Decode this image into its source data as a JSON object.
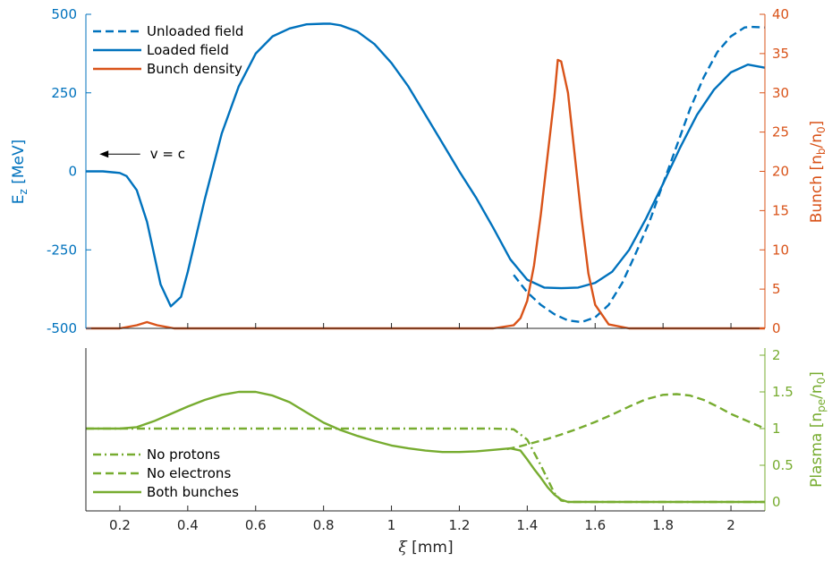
{
  "colors": {
    "field": "#0072BD",
    "bunch": "#D95319",
    "plasma": "#77AC30",
    "axis": "#262626"
  },
  "chart_data": [
    {
      "type": "line",
      "xlim": [
        0.1,
        2.1
      ],
      "ylim_left": [
        -500,
        500
      ],
      "ylim_right": [
        0,
        40
      ],
      "ylabel_left": {
        "main": "E",
        "sub": "z",
        "rest": " [MeV]"
      },
      "ylabel_right": {
        "main": "Bunch [n",
        "sub1": "b",
        "mid": "/n",
        "sub2": "0",
        "end": "]"
      },
      "left_ticks": [
        "500",
        "250",
        "0",
        "-250",
        "-500"
      ],
      "left_tick_values": [
        500,
        250,
        0,
        -250,
        -500
      ],
      "right_ticks": [
        "40",
        "35",
        "30",
        "25",
        "20",
        "15",
        "10",
        "5",
        "0"
      ],
      "right_tick_values": [
        40,
        35,
        30,
        25,
        20,
        15,
        10,
        5,
        0
      ],
      "annotation": {
        "text": "v = c",
        "arrow_from": [
          0.26,
          55
        ],
        "arrow_to": [
          0.14,
          55
        ]
      },
      "legend_position": "top-left",
      "series": [
        {
          "name": "Unloaded field",
          "axis": "left",
          "style": "dashed",
          "x": [
            1.36,
            1.4,
            1.44,
            1.48,
            1.52,
            1.56,
            1.6,
            1.64,
            1.68,
            1.72,
            1.76,
            1.8,
            1.84,
            1.88,
            1.92,
            1.96,
            2.0,
            2.04,
            2.06,
            2.1
          ],
          "y": [
            -330,
            -385,
            -425,
            -455,
            -475,
            -480,
            -465,
            -425,
            -355,
            -260,
            -160,
            -40,
            80,
            200,
            300,
            380,
            430,
            458,
            460,
            458
          ]
        },
        {
          "name": "Loaded field",
          "axis": "left",
          "style": "solid",
          "x": [
            0.1,
            0.15,
            0.2,
            0.22,
            0.25,
            0.28,
            0.3,
            0.32,
            0.35,
            0.38,
            0.4,
            0.45,
            0.5,
            0.55,
            0.6,
            0.65,
            0.7,
            0.75,
            0.8,
            0.82,
            0.85,
            0.9,
            0.95,
            1.0,
            1.05,
            1.1,
            1.15,
            1.2,
            1.25,
            1.3,
            1.35,
            1.4,
            1.45,
            1.5,
            1.55,
            1.6,
            1.65,
            1.7,
            1.75,
            1.8,
            1.85,
            1.9,
            1.95,
            2.0,
            2.05,
            2.1
          ],
          "y": [
            0,
            0,
            -5,
            -15,
            -60,
            -160,
            -260,
            -360,
            -430,
            -400,
            -320,
            -90,
            120,
            270,
            375,
            430,
            455,
            468,
            470,
            470,
            465,
            445,
            405,
            345,
            270,
            180,
            90,
            0,
            -85,
            -180,
            -280,
            -345,
            -370,
            -372,
            -370,
            -355,
            -320,
            -250,
            -150,
            -40,
            75,
            180,
            260,
            315,
            340,
            330
          ]
        },
        {
          "name": "Bunch density",
          "axis": "right",
          "style": "solid",
          "x": [
            0.1,
            0.2,
            0.25,
            0.28,
            0.31,
            0.36,
            0.4,
            1.1,
            1.3,
            1.36,
            1.38,
            1.4,
            1.42,
            1.44,
            1.46,
            1.48,
            1.49,
            1.5,
            1.52,
            1.54,
            1.56,
            1.58,
            1.6,
            1.64,
            1.7,
            2.1
          ],
          "y": [
            0,
            0,
            0.4,
            0.8,
            0.4,
            0,
            0,
            0,
            0,
            0.4,
            1.3,
            3.5,
            8,
            14.5,
            22,
            29.5,
            34.2,
            34,
            30,
            22,
            14,
            7,
            3,
            0.5,
            0,
            0
          ]
        }
      ]
    },
    {
      "type": "line",
      "xlim": [
        0.1,
        2.1
      ],
      "ylim_right": [
        0,
        2
      ],
      "xlabel": {
        "sym": "ξ",
        "rest": " [mm]"
      },
      "ylabel_right": {
        "main": "Plasma [n",
        "sub1": "pe",
        "mid": "/n",
        "sub2": "0",
        "end": "]"
      },
      "x_ticks": [
        "0.2",
        "0.4",
        "0.6",
        "0.8",
        "1",
        "1.2",
        "1.4",
        "1.6",
        "1.8",
        "2"
      ],
      "x_tick_values": [
        0.2,
        0.4,
        0.6,
        0.8,
        1.0,
        1.2,
        1.4,
        1.6,
        1.8,
        2.0
      ],
      "right_ticks": [
        "2",
        "1.5",
        "1",
        "0.5",
        "0"
      ],
      "right_tick_values": [
        2,
        1.5,
        1,
        0.5,
        0
      ],
      "legend_position": "bottom-left",
      "series": [
        {
          "name": "No protons",
          "style": "dashdot",
          "x": [
            0.1,
            0.5,
            1.0,
            1.3,
            1.36,
            1.4,
            1.44,
            1.48,
            1.5,
            1.52,
            1.56,
            1.6,
            2.1
          ],
          "y": [
            1.0,
            1.0,
            1.0,
            1.0,
            0.99,
            0.85,
            0.5,
            0.12,
            0.02,
            0.0,
            0.0,
            0.0,
            0.0
          ]
        },
        {
          "name": "No electrons",
          "style": "dashed",
          "x": [
            1.34,
            1.38,
            1.42,
            1.46,
            1.5,
            1.55,
            1.6,
            1.65,
            1.7,
            1.75,
            1.8,
            1.84,
            1.88,
            1.92,
            1.96,
            2.0,
            2.05,
            2.1
          ],
          "y": [
            0.72,
            0.76,
            0.81,
            0.86,
            0.92,
            1.0,
            1.09,
            1.19,
            1.3,
            1.4,
            1.46,
            1.47,
            1.45,
            1.39,
            1.3,
            1.2,
            1.1,
            1.0
          ]
        },
        {
          "name": "Both bunches",
          "style": "solid",
          "x": [
            0.1,
            0.2,
            0.25,
            0.3,
            0.35,
            0.4,
            0.45,
            0.5,
            0.55,
            0.6,
            0.65,
            0.7,
            0.75,
            0.8,
            0.85,
            0.9,
            0.95,
            1.0,
            1.05,
            1.1,
            1.15,
            1.2,
            1.25,
            1.3,
            1.35,
            1.38,
            1.4,
            1.42,
            1.44,
            1.46,
            1.48,
            1.5,
            1.52,
            1.55,
            1.6,
            2.1
          ],
          "y": [
            1.0,
            1.0,
            1.02,
            1.1,
            1.2,
            1.3,
            1.39,
            1.46,
            1.5,
            1.5,
            1.45,
            1.36,
            1.22,
            1.08,
            0.98,
            0.9,
            0.83,
            0.77,
            0.73,
            0.7,
            0.68,
            0.68,
            0.69,
            0.71,
            0.73,
            0.7,
            0.58,
            0.45,
            0.33,
            0.2,
            0.1,
            0.03,
            0.0,
            0.0,
            0.0,
            0.0
          ]
        }
      ]
    }
  ]
}
